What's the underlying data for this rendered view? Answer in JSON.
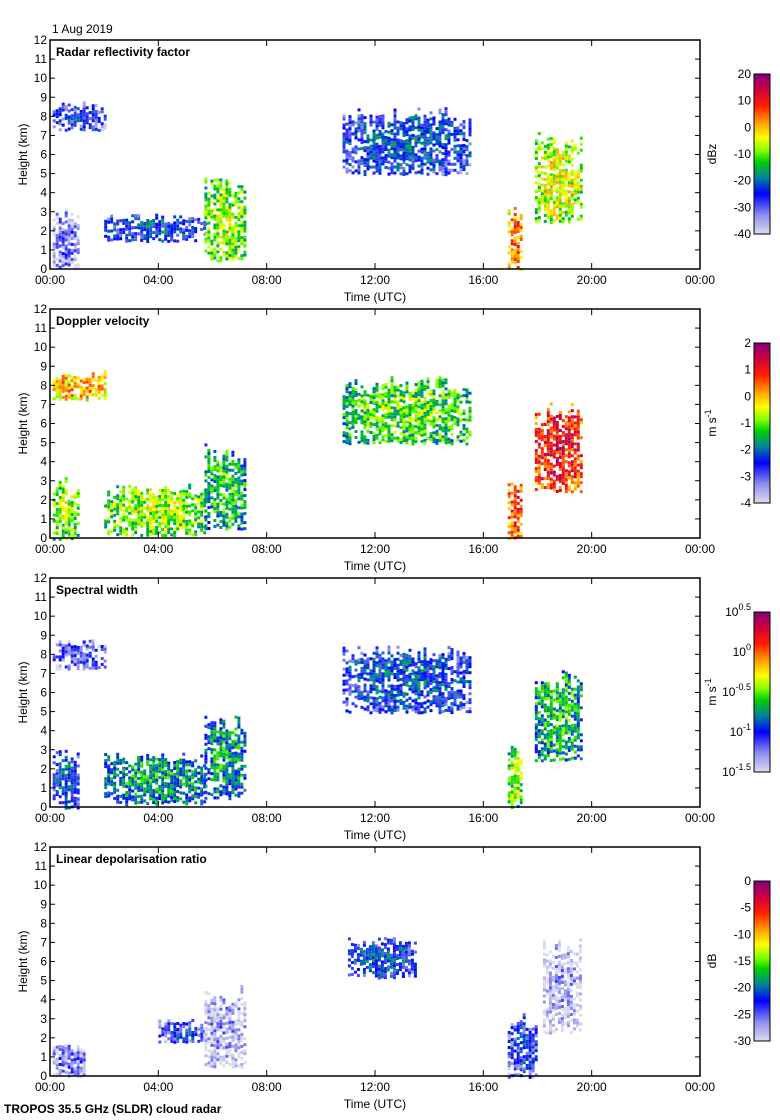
{
  "date_label": "1 Aug 2019",
  "footer": "TROPOS 35.5 GHz (SLDR) cloud radar",
  "chart_data": [
    {
      "type": "heatmap",
      "title": "Radar reflectivity factor",
      "xlabel": "Time (UTC)",
      "ylabel": "Height (km)",
      "xticks": [
        "00:00",
        "04:00",
        "08:00",
        "12:00",
        "16:00",
        "20:00",
        "00:00"
      ],
      "xlim_hours": [
        0,
        24
      ],
      "ylim": [
        0,
        12
      ],
      "yticks": [
        "0",
        "1",
        "2",
        "3",
        "4",
        "5",
        "6",
        "7",
        "8",
        "9",
        "10",
        "11",
        "12"
      ],
      "colorbar": {
        "label": "dBz",
        "ticks": [
          "-40",
          "-30",
          "-20",
          "-10",
          "0",
          "10",
          "20"
        ],
        "range": [
          -40,
          20
        ]
      },
      "features": [
        {
          "name": "upper cloud 00-01h",
          "t": [
            0.1,
            2.0
          ],
          "h": [
            7.3,
            8.8
          ],
          "level": 0.25
        },
        {
          "name": "low cloud 00-01h",
          "t": [
            0.1,
            1.0
          ],
          "h": [
            0,
            3.2
          ],
          "level": 0.15
        },
        {
          "name": "stratocumulus 02-06h",
          "t": [
            2.0,
            5.7
          ],
          "h": [
            1.5,
            2.9
          ],
          "level": 0.3
        },
        {
          "name": "convective 06-07h",
          "t": [
            5.7,
            7.2
          ],
          "h": [
            0.5,
            5.0
          ],
          "level": 0.55
        },
        {
          "name": "cirrus 10-14h",
          "t": [
            10.8,
            15.5
          ],
          "h": [
            5.0,
            8.5
          ],
          "level": 0.3
        },
        {
          "name": "precip 17h",
          "t": [
            16.9,
            17.4
          ],
          "h": [
            0,
            3.3
          ],
          "level": 0.75
        },
        {
          "name": "deep cloud 18-20h",
          "t": [
            17.9,
            19.6
          ],
          "h": [
            2.5,
            7.2
          ],
          "level": 0.6
        }
      ]
    },
    {
      "type": "heatmap",
      "title": "Doppler velocity",
      "xlabel": "Time (UTC)",
      "ylabel": "Height (km)",
      "xticks": [
        "00:00",
        "04:00",
        "08:00",
        "12:00",
        "16:00",
        "20:00",
        "00:00"
      ],
      "xlim_hours": [
        0,
        24
      ],
      "ylim": [
        0,
        12
      ],
      "yticks": [
        "0",
        "1",
        "2",
        "3",
        "4",
        "5",
        "6",
        "7",
        "8",
        "9",
        "10",
        "11",
        "12"
      ],
      "colorbar": {
        "label": "m s",
        "label_sup": "-1",
        "ticks": [
          "-4",
          "-3",
          "-2",
          "-1",
          "0",
          "1",
          "2"
        ],
        "range": [
          -4,
          2
        ]
      },
      "features": [
        {
          "name": "upper cloud 00-01h",
          "t": [
            0.1,
            2.0
          ],
          "h": [
            7.3,
            8.8
          ],
          "level": 0.7
        },
        {
          "name": "low cloud 00-01h",
          "t": [
            0.1,
            1.0
          ],
          "h": [
            0,
            3.2
          ],
          "level": 0.55
        },
        {
          "name": "stratocumulus 02-06h",
          "t": [
            2.0,
            5.7
          ],
          "h": [
            0.2,
            2.9
          ],
          "level": 0.55
        },
        {
          "name": "convective 06-07h",
          "t": [
            5.7,
            7.2
          ],
          "h": [
            0.5,
            5.0
          ],
          "level": 0.45
        },
        {
          "name": "cirrus 10-14h",
          "t": [
            10.8,
            15.5
          ],
          "h": [
            5.0,
            8.5
          ],
          "level": 0.5
        },
        {
          "name": "precip 17h",
          "t": [
            16.9,
            17.4
          ],
          "h": [
            0,
            3.3
          ],
          "level": 0.8
        },
        {
          "name": "deep cloud 18-20h",
          "t": [
            17.9,
            19.6
          ],
          "h": [
            2.5,
            7.2
          ],
          "level": 0.85
        }
      ]
    },
    {
      "type": "heatmap",
      "title": "Spectral width",
      "xlabel": "Time (UTC)",
      "ylabel": "Height (km)",
      "xticks": [
        "00:00",
        "04:00",
        "08:00",
        "12:00",
        "16:00",
        "20:00",
        "00:00"
      ],
      "xlim_hours": [
        0,
        24
      ],
      "ylim": [
        0,
        12
      ],
      "yticks": [
        "0",
        "1",
        "2",
        "3",
        "4",
        "5",
        "6",
        "7",
        "8",
        "9",
        "10",
        "11",
        "12"
      ],
      "colorbar": {
        "label": "m s",
        "label_sup": "-1",
        "ticks": [
          {
            "base": "10",
            "exp": "-1.5"
          },
          {
            "base": "10",
            "exp": "-1"
          },
          {
            "base": "10",
            "exp": "-0.5"
          },
          {
            "base": "10",
            "exp": "0"
          },
          {
            "base": "10",
            "exp": "0.5"
          }
        ],
        "range": [
          -1.5,
          0.5
        ]
      },
      "features": [
        {
          "name": "upper cloud 00-01h",
          "t": [
            0.1,
            2.0
          ],
          "h": [
            7.3,
            8.8
          ],
          "level": 0.2
        },
        {
          "name": "low cloud 00-01h",
          "t": [
            0.1,
            1.0
          ],
          "h": [
            0,
            3.2
          ],
          "level": 0.3
        },
        {
          "name": "stratocumulus 02-06h",
          "t": [
            2.0,
            5.7
          ],
          "h": [
            0.2,
            2.9
          ],
          "level": 0.4
        },
        {
          "name": "convective 06-07h",
          "t": [
            5.7,
            7.2
          ],
          "h": [
            0.5,
            5.0
          ],
          "level": 0.4
        },
        {
          "name": "cirrus 10-14h",
          "t": [
            10.8,
            15.5
          ],
          "h": [
            5.0,
            8.5
          ],
          "level": 0.3
        },
        {
          "name": "precip 17h",
          "t": [
            16.9,
            17.4
          ],
          "h": [
            0,
            3.3
          ],
          "level": 0.55
        },
        {
          "name": "deep cloud 18-20h",
          "t": [
            17.9,
            19.6
          ],
          "h": [
            2.5,
            7.2
          ],
          "level": 0.45
        }
      ]
    },
    {
      "type": "heatmap",
      "title": "Linear depolarisation ratio",
      "xlabel": "Time (UTC)",
      "ylabel": "Height (km)",
      "xticks": [
        "00:00",
        "04:00",
        "08:00",
        "12:00",
        "16:00",
        "20:00",
        "00:00"
      ],
      "xlim_hours": [
        0,
        24
      ],
      "ylim": [
        0,
        12
      ],
      "yticks": [
        "0",
        "1",
        "2",
        "3",
        "4",
        "5",
        "6",
        "7",
        "8",
        "9",
        "10",
        "11",
        "12"
      ],
      "colorbar": {
        "label": "dB",
        "ticks": [
          "-30",
          "-25",
          "-20",
          "-15",
          "-10",
          "-5",
          "0"
        ],
        "range": [
          -30,
          0
        ]
      },
      "features": [
        {
          "name": "low cloud 00-01h",
          "t": [
            0.1,
            1.3
          ],
          "h": [
            0,
            1.8
          ],
          "level": 0.15
        },
        {
          "name": "stratocumulus 04-06h",
          "t": [
            4.0,
            5.7
          ],
          "h": [
            1.8,
            3.0
          ],
          "level": 0.25
        },
        {
          "name": "convective 06-07h",
          "t": [
            5.7,
            7.2
          ],
          "h": [
            0.5,
            4.8
          ],
          "level": 0.1
        },
        {
          "name": "cirrus 11-13h",
          "t": [
            11.0,
            13.5
          ],
          "h": [
            5.2,
            7.3
          ],
          "level": 0.3
        },
        {
          "name": "precip 17h",
          "t": [
            16.9,
            18.0
          ],
          "h": [
            0,
            3.3
          ],
          "level": 0.25
        },
        {
          "name": "deep cloud 18-20h",
          "t": [
            18.2,
            19.6
          ],
          "h": [
            2.3,
            7.5
          ],
          "level": 0.08
        }
      ]
    }
  ]
}
